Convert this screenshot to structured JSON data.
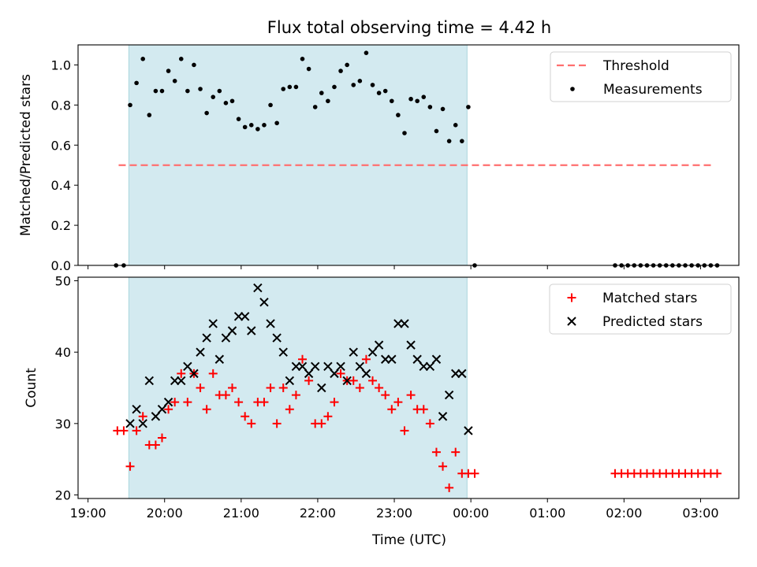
{
  "title": "Flux total observing time = 4.42 h",
  "xlabel": "Time (UTC)",
  "x_tick_labels": [
    "19:00",
    "20:00",
    "21:00",
    "22:00",
    "23:00",
    "00:00",
    "01:00",
    "02:00",
    "03:00"
  ],
  "colors": {
    "threshold": "#ff6f6f",
    "measurements": "#000000",
    "matched": "#ff0000",
    "predicted": "#000000",
    "observing_window": "#d3eaf0"
  },
  "chart_data": [
    {
      "type": "scatter",
      "panel": "top",
      "ylabel": "Matched/Predicted stars",
      "ylim": [
        0,
        1.1
      ],
      "y_ticks": [
        "0.0",
        "0.2",
        "0.4",
        "0.6",
        "0.8",
        "1.0"
      ],
      "x_axis": "hours since 19:00 UTC",
      "xlim": [
        -0.13,
        8.5
      ],
      "observing_window": [
        "19:32",
        "23:57"
      ],
      "legend": [
        "Threshold",
        "Measurements"
      ],
      "legend_position": "upper right",
      "series": [
        {
          "name": "Threshold",
          "style": "dashed-line",
          "x": [
            "19:24",
            "03:11"
          ],
          "y": [
            0.5,
            0.5
          ]
        },
        {
          "name": "Measurements",
          "style": "dots",
          "points": [
            [
              "19:22",
              0.0
            ],
            [
              "19:28",
              0.0
            ],
            [
              "19:33",
              0.8
            ],
            [
              "19:38",
              0.91
            ],
            [
              "19:43",
              1.03
            ],
            [
              "19:48",
              0.75
            ],
            [
              "19:53",
              0.87
            ],
            [
              "19:58",
              0.87
            ],
            [
              "20:03",
              0.97
            ],
            [
              "20:08",
              0.92
            ],
            [
              "20:13",
              1.03
            ],
            [
              "20:18",
              0.87
            ],
            [
              "20:23",
              1.0
            ],
            [
              "20:28",
              0.88
            ],
            [
              "20:33",
              0.76
            ],
            [
              "20:38",
              0.84
            ],
            [
              "20:43",
              0.87
            ],
            [
              "20:48",
              0.81
            ],
            [
              "20:53",
              0.82
            ],
            [
              "20:58",
              0.73
            ],
            [
              "21:03",
              0.69
            ],
            [
              "21:08",
              0.7
            ],
            [
              "21:13",
              0.68
            ],
            [
              "21:18",
              0.7
            ],
            [
              "21:23",
              0.8
            ],
            [
              "21:28",
              0.71
            ],
            [
              "21:33",
              0.88
            ],
            [
              "21:38",
              0.89
            ],
            [
              "21:43",
              0.89
            ],
            [
              "21:48",
              1.03
            ],
            [
              "21:53",
              0.98
            ],
            [
              "21:58",
              0.79
            ],
            [
              "22:03",
              0.86
            ],
            [
              "22:08",
              0.82
            ],
            [
              "22:13",
              0.89
            ],
            [
              "22:18",
              0.97
            ],
            [
              "22:23",
              1.0
            ],
            [
              "22:28",
              0.9
            ],
            [
              "22:33",
              0.92
            ],
            [
              "22:38",
              1.06
            ],
            [
              "22:43",
              0.9
            ],
            [
              "22:48",
              0.86
            ],
            [
              "22:53",
              0.87
            ],
            [
              "22:58",
              0.82
            ],
            [
              "23:03",
              0.75
            ],
            [
              "23:08",
              0.66
            ],
            [
              "23:13",
              0.83
            ],
            [
              "23:18",
              0.82
            ],
            [
              "23:23",
              0.84
            ],
            [
              "23:28",
              0.79
            ],
            [
              "23:33",
              0.67
            ],
            [
              "23:38",
              0.78
            ],
            [
              "23:43",
              0.62
            ],
            [
              "23:48",
              0.7
            ],
            [
              "23:53",
              0.62
            ],
            [
              "23:58",
              0.79
            ],
            [
              "00:03",
              0.0
            ],
            [
              "01:53",
              0.0
            ],
            [
              "01:58",
              0.0
            ],
            [
              "02:03",
              0.0
            ],
            [
              "02:08",
              0.0
            ],
            [
              "02:13",
              0.0
            ],
            [
              "02:18",
              0.0
            ],
            [
              "02:23",
              0.0
            ],
            [
              "02:28",
              0.0
            ],
            [
              "02:33",
              0.0
            ],
            [
              "02:38",
              0.0
            ],
            [
              "02:43",
              0.0
            ],
            [
              "02:48",
              0.0
            ],
            [
              "02:53",
              0.0
            ],
            [
              "02:58",
              0.0
            ],
            [
              "03:03",
              0.0
            ],
            [
              "03:08",
              0.0
            ],
            [
              "03:13",
              0.0
            ]
          ]
        }
      ]
    },
    {
      "type": "scatter",
      "panel": "bottom",
      "ylabel": "Count",
      "ylim": [
        19.5,
        50.5
      ],
      "y_ticks": [
        "20",
        "30",
        "40",
        "50"
      ],
      "x_axis": "hours since 19:00 UTC",
      "xlim": [
        -0.13,
        8.5
      ],
      "observing_window": [
        "19:32",
        "23:57"
      ],
      "legend": [
        "Matched stars",
        "Predicted stars"
      ],
      "legend_position": "upper right",
      "series": [
        {
          "name": "Matched stars",
          "marker": "plus",
          "points": [
            [
              "19:23",
              29
            ],
            [
              "19:28",
              29
            ],
            [
              "19:33",
              24
            ],
            [
              "19:38",
              29
            ],
            [
              "19:43",
              31
            ],
            [
              "19:48",
              27
            ],
            [
              "19:53",
              27
            ],
            [
              "19:58",
              28
            ],
            [
              "20:03",
              32
            ],
            [
              "20:08",
              33
            ],
            [
              "20:13",
              37
            ],
            [
              "20:18",
              33
            ],
            [
              "20:23",
              37
            ],
            [
              "20:28",
              35
            ],
            [
              "20:33",
              32
            ],
            [
              "20:38",
              37
            ],
            [
              "20:43",
              34
            ],
            [
              "20:48",
              34
            ],
            [
              "20:53",
              35
            ],
            [
              "20:58",
              33
            ],
            [
              "21:03",
              31
            ],
            [
              "21:08",
              30
            ],
            [
              "21:13",
              33
            ],
            [
              "21:18",
              33
            ],
            [
              "21:23",
              35
            ],
            [
              "21:28",
              30
            ],
            [
              "21:33",
              35
            ],
            [
              "21:38",
              32
            ],
            [
              "21:43",
              34
            ],
            [
              "21:48",
              39
            ],
            [
              "21:53",
              36
            ],
            [
              "21:58",
              30
            ],
            [
              "22:03",
              30
            ],
            [
              "22:08",
              31
            ],
            [
              "22:13",
              33
            ],
            [
              "22:18",
              37
            ],
            [
              "22:23",
              36
            ],
            [
              "22:28",
              36
            ],
            [
              "22:33",
              35
            ],
            [
              "22:38",
              39
            ],
            [
              "22:43",
              36
            ],
            [
              "22:48",
              35
            ],
            [
              "22:53",
              34
            ],
            [
              "22:58",
              32
            ],
            [
              "23:03",
              33
            ],
            [
              "23:08",
              29
            ],
            [
              "23:13",
              34
            ],
            [
              "23:18",
              32
            ],
            [
              "23:23",
              32
            ],
            [
              "23:28",
              30
            ],
            [
              "23:33",
              26
            ],
            [
              "23:38",
              24
            ],
            [
              "23:43",
              21
            ],
            [
              "23:48",
              26
            ],
            [
              "23:53",
              23
            ],
            [
              "23:58",
              23
            ],
            [
              "00:03",
              23
            ],
            [
              "01:53",
              23
            ],
            [
              "01:58",
              23
            ],
            [
              "02:03",
              23
            ],
            [
              "02:08",
              23
            ],
            [
              "02:13",
              23
            ],
            [
              "02:18",
              23
            ],
            [
              "02:23",
              23
            ],
            [
              "02:28",
              23
            ],
            [
              "02:33",
              23
            ],
            [
              "02:38",
              23
            ],
            [
              "02:43",
              23
            ],
            [
              "02:48",
              23
            ],
            [
              "02:53",
              23
            ],
            [
              "02:58",
              23
            ],
            [
              "03:03",
              23
            ],
            [
              "03:08",
              23
            ],
            [
              "03:13",
              23
            ]
          ]
        },
        {
          "name": "Predicted stars",
          "marker": "x",
          "points": [
            [
              "19:33",
              30
            ],
            [
              "19:38",
              32
            ],
            [
              "19:43",
              30
            ],
            [
              "19:48",
              36
            ],
            [
              "19:53",
              31
            ],
            [
              "19:58",
              32
            ],
            [
              "20:03",
              33
            ],
            [
              "20:08",
              36
            ],
            [
              "20:13",
              36
            ],
            [
              "20:18",
              38
            ],
            [
              "20:23",
              37
            ],
            [
              "20:28",
              40
            ],
            [
              "20:33",
              42
            ],
            [
              "20:38",
              44
            ],
            [
              "20:43",
              39
            ],
            [
              "20:48",
              42
            ],
            [
              "20:53",
              43
            ],
            [
              "20:58",
              45
            ],
            [
              "21:03",
              45
            ],
            [
              "21:08",
              43
            ],
            [
              "21:13",
              49
            ],
            [
              "21:18",
              47
            ],
            [
              "21:23",
              44
            ],
            [
              "21:28",
              42
            ],
            [
              "21:33",
              40
            ],
            [
              "21:38",
              36
            ],
            [
              "21:43",
              38
            ],
            [
              "21:48",
              38
            ],
            [
              "21:53",
              37
            ],
            [
              "21:58",
              38
            ],
            [
              "22:03",
              35
            ],
            [
              "22:08",
              38
            ],
            [
              "22:13",
              37
            ],
            [
              "22:18",
              38
            ],
            [
              "22:23",
              36
            ],
            [
              "22:28",
              40
            ],
            [
              "22:33",
              38
            ],
            [
              "22:38",
              37
            ],
            [
              "22:43",
              40
            ],
            [
              "22:48",
              41
            ],
            [
              "22:53",
              39
            ],
            [
              "22:58",
              39
            ],
            [
              "23:03",
              44
            ],
            [
              "23:08",
              44
            ],
            [
              "23:13",
              41
            ],
            [
              "23:18",
              39
            ],
            [
              "23:23",
              38
            ],
            [
              "23:28",
              38
            ],
            [
              "23:33",
              39
            ],
            [
              "23:38",
              31
            ],
            [
              "23:43",
              34
            ],
            [
              "23:48",
              37
            ],
            [
              "23:53",
              37
            ],
            [
              "23:58",
              29
            ]
          ]
        }
      ]
    }
  ]
}
